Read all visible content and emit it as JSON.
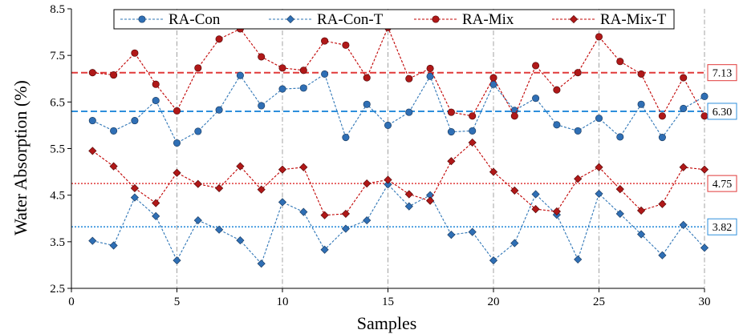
{
  "chart_data": {
    "type": "line",
    "xlabel": "Samples",
    "ylabel": "Water Absorption (%)",
    "xlim": [
      0,
      30
    ],
    "ylim": [
      2.5,
      8.5
    ],
    "x_ticks": [
      "0",
      "5",
      "10",
      "15",
      "20",
      "25",
      "30"
    ],
    "y_ticks": [
      "2.5",
      "3.5",
      "4.5",
      "5.5",
      "6.5",
      "7.5",
      "8.5"
    ],
    "grid": "vertical dash-dot at x = 5, 10, 15, 20, 25, 30",
    "legend_position": "top",
    "x": [
      1,
      2,
      3,
      4,
      5,
      6,
      7,
      8,
      9,
      10,
      11,
      12,
      13,
      14,
      15,
      16,
      17,
      18,
      19,
      20,
      21,
      22,
      23,
      24,
      25,
      26,
      27,
      28,
      29,
      30
    ],
    "series": [
      {
        "name": "RA-Con",
        "color": "#2e75b6",
        "marker": "circle",
        "values": [
          6.1,
          5.88,
          6.1,
          6.53,
          5.62,
          5.87,
          6.33,
          7.07,
          6.42,
          6.78,
          6.8,
          7.1,
          5.74,
          6.45,
          6.0,
          6.28,
          7.05,
          5.86,
          5.88,
          6.88,
          6.32,
          6.58,
          6.01,
          5.88,
          6.15,
          5.75,
          6.45,
          5.74,
          6.36,
          6.62
        ]
      },
      {
        "name": "RA-Con-T",
        "color": "#2e75b6",
        "marker": "diamond",
        "values": [
          3.52,
          3.42,
          4.45,
          4.05,
          3.1,
          3.96,
          3.76,
          3.53,
          3.03,
          4.35,
          4.14,
          3.33,
          3.78,
          3.96,
          4.73,
          4.26,
          4.5,
          3.65,
          3.71,
          3.1,
          3.47,
          4.52,
          4.08,
          3.12,
          4.53,
          4.1,
          3.66,
          3.21,
          3.86,
          3.37
        ]
      },
      {
        "name": "RA-Mix",
        "color": "#c00000",
        "marker": "circle",
        "values": [
          7.13,
          7.08,
          7.55,
          6.88,
          6.31,
          7.23,
          7.85,
          8.07,
          7.47,
          7.23,
          7.18,
          7.81,
          7.72,
          7.02,
          8.1,
          7.0,
          7.22,
          6.28,
          6.2,
          7.02,
          6.2,
          7.28,
          6.76,
          7.13,
          7.9,
          7.37,
          7.1,
          6.2,
          7.02,
          6.2
        ]
      },
      {
        "name": "RA-Mix-T",
        "color": "#c00000",
        "marker": "diamond",
        "values": [
          5.45,
          5.12,
          4.65,
          4.33,
          4.98,
          4.74,
          4.65,
          5.12,
          4.62,
          5.05,
          5.1,
          4.07,
          4.1,
          4.75,
          4.83,
          4.52,
          4.38,
          5.23,
          5.63,
          5.0,
          4.6,
          4.2,
          4.15,
          4.85,
          5.1,
          4.63,
          4.17,
          4.31,
          5.1,
          5.05
        ]
      }
    ],
    "reference_lines": [
      {
        "value": 7.13,
        "label": "7.13",
        "color": "#e03a3a",
        "style": "dashed"
      },
      {
        "value": 6.3,
        "label": "6.30",
        "color": "#2e8fdc",
        "style": "dashed"
      },
      {
        "value": 4.75,
        "label": "4.75",
        "color": "#e03a3a",
        "style": "dotted"
      },
      {
        "value": 3.82,
        "label": "3.82",
        "color": "#2e8fdc",
        "style": "dotted"
      }
    ]
  }
}
